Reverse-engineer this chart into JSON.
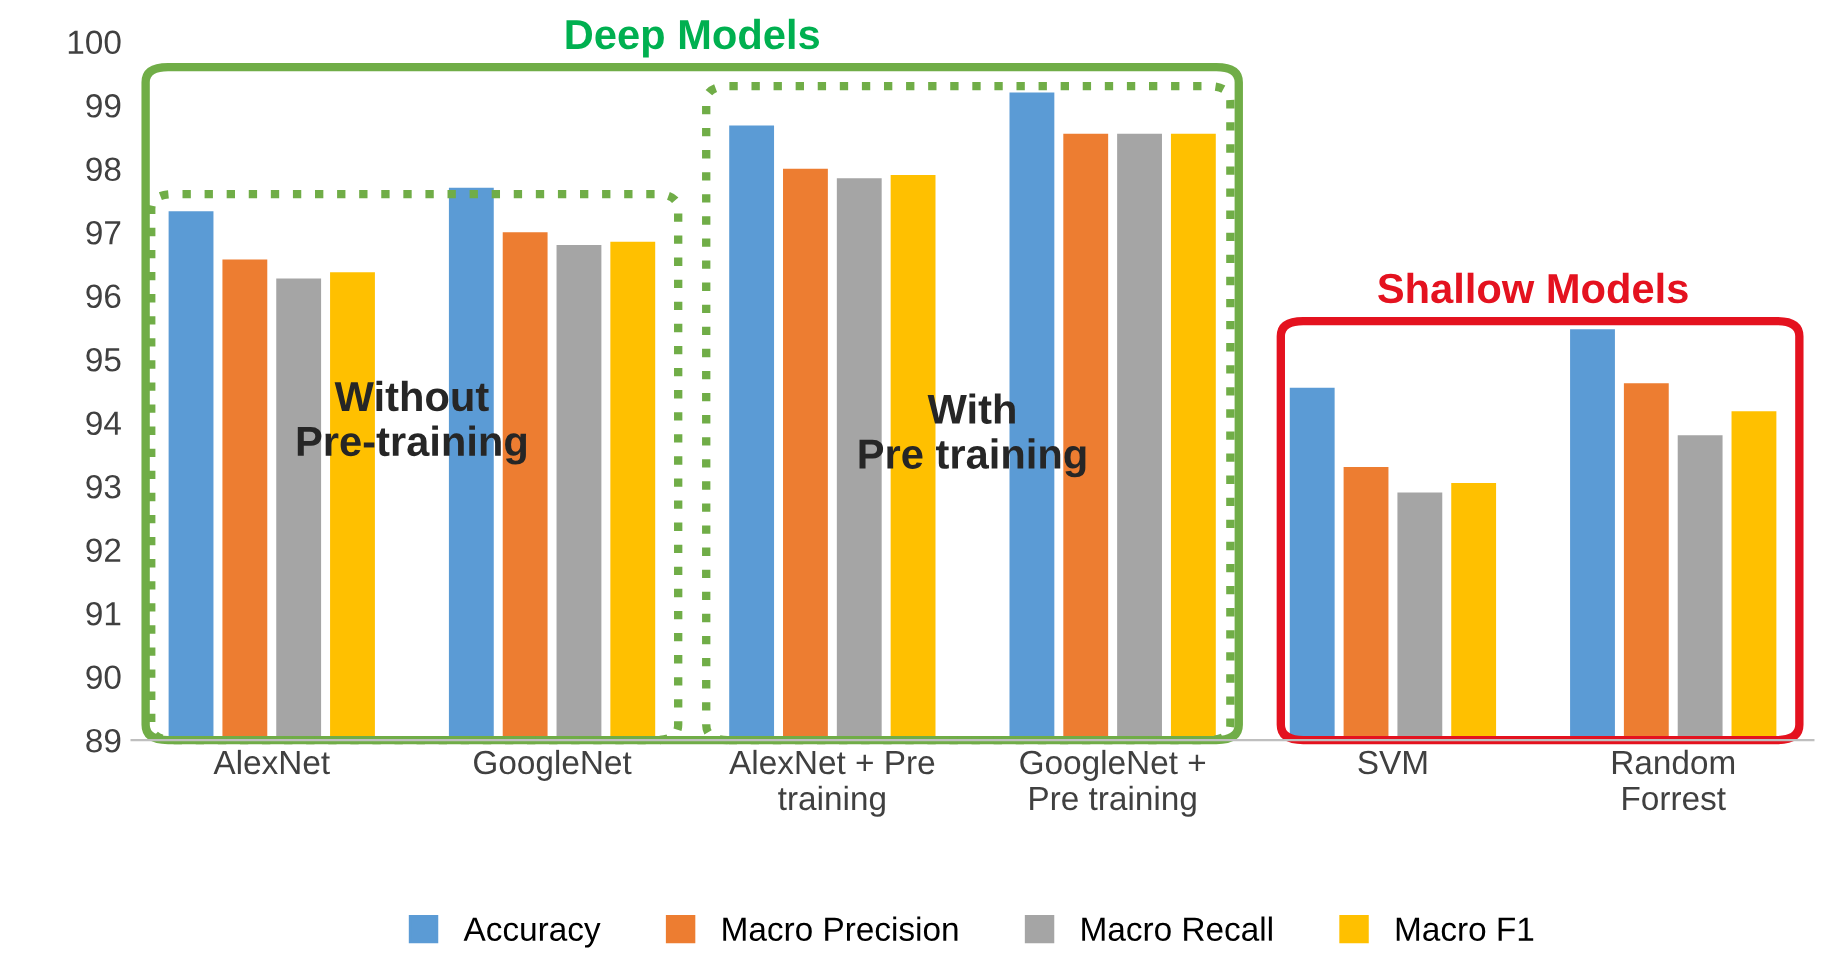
{
  "chart_data": {
    "type": "bar",
    "categories": [
      "AlexNet",
      "GoogleNet",
      "AlexNet + Pre\ntraining",
      "GoogleNet +\nPre training",
      "SVM",
      "Random\nForrest"
    ],
    "series": [
      {
        "name": "Accuracy",
        "color": "#5b9bd5",
        "values": [
          97.33,
          97.7,
          98.68,
          99.2,
          94.55,
          95.47
        ]
      },
      {
        "name": "Macro Precision",
        "color": "#ed7d31",
        "values": [
          96.57,
          97.0,
          98.0,
          98.55,
          93.3,
          94.62
        ]
      },
      {
        "name": "Macro Recall",
        "color": "#a5a5a5",
        "values": [
          96.27,
          96.8,
          97.85,
          98.55,
          92.9,
          93.8
        ]
      },
      {
        "name": "Macro F1",
        "color": "#ffc000",
        "values": [
          96.37,
          96.85,
          97.9,
          98.55,
          93.05,
          94.18
        ]
      }
    ],
    "ylim": [
      89,
      100
    ],
    "yticks": [
      89,
      90,
      91,
      92,
      93,
      94,
      95,
      96,
      97,
      98,
      99,
      100
    ],
    "legend": "bottom",
    "annotations": [
      "Deep Models",
      "Without\nPre-training",
      "With\nPre training",
      "Shallow Models"
    ]
  }
}
